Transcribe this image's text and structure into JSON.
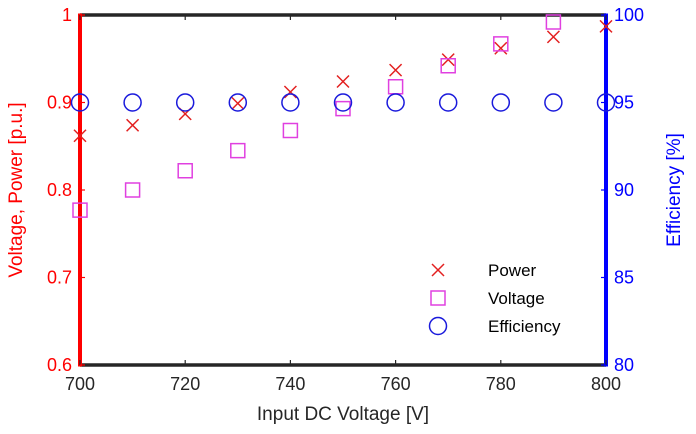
{
  "chart_data": {
    "type": "scatter",
    "x": [
      700,
      710,
      720,
      730,
      740,
      750,
      760,
      770,
      780,
      790,
      800
    ],
    "xlabel": "Input DC Voltage [V]",
    "xlim": [
      700,
      800
    ],
    "xticks": [
      "700",
      "720",
      "740",
      "760",
      "780",
      "800"
    ],
    "ylabel_left": "Voltage, Power [p.u.]",
    "ylim_left": [
      0.6,
      1.0
    ],
    "yticks_left": [
      "0.6",
      "0.7",
      "0.8",
      "0.9",
      "1"
    ],
    "ylabel_right": "Efficiency [%]",
    "ylim_right": [
      80,
      100
    ],
    "yticks_right": [
      "80",
      "85",
      "90",
      "95",
      "100"
    ],
    "legend_position": "bottom-right",
    "series": [
      {
        "name": "Power",
        "axis": "left",
        "marker": "x",
        "color": "#e32020",
        "values": [
          0.862,
          0.874,
          0.887,
          0.899,
          0.912,
          0.924,
          0.937,
          0.949,
          0.962,
          0.975,
          0.987
        ]
      },
      {
        "name": "Voltage",
        "axis": "left",
        "marker": "square",
        "color": "#e040e0",
        "values": [
          0.777,
          0.8,
          0.822,
          0.845,
          0.868,
          0.893,
          0.918,
          0.942,
          0.967,
          0.992,
          null
        ]
      },
      {
        "name": "Efficiency",
        "axis": "right",
        "marker": "circle",
        "color": "#1a1adc",
        "values": [
          95,
          95,
          95,
          95,
          95,
          95,
          95,
          95,
          95,
          95,
          95
        ]
      }
    ],
    "colors": {
      "left_axis": "#ff0000",
      "right_axis": "#0000ff",
      "frame": "#262626"
    }
  }
}
